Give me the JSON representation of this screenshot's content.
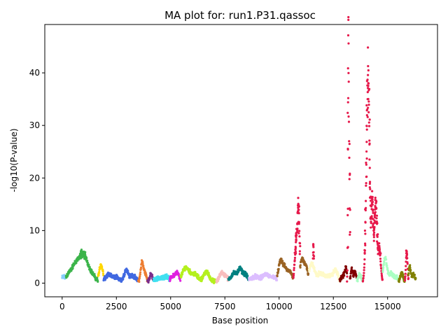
{
  "chart_data": {
    "type": "scatter",
    "title": "MA plot for: run1.P31.qassoc",
    "xlabel": "Base position",
    "ylabel": "-log10(P-value)",
    "xlim": [
      -800,
      17300
    ],
    "ylim": [
      -2.6,
      49.2
    ],
    "xticks": [
      0,
      2500,
      5000,
      7500,
      10000,
      12500,
      15000
    ],
    "yticks": [
      0,
      10,
      20,
      30,
      40
    ],
    "grid": false,
    "legend": "none",
    "segments": [
      {
        "color": "#87CEFA",
        "x_start": 0,
        "x_end": 170,
        "peaks": [
          [
            80,
            0.8,
            150
          ]
        ]
      },
      {
        "color": "#3CB44B",
        "x_start": 180,
        "x_end": 1650,
        "peaks": [
          [
            300,
            1.2,
            120
          ],
          [
            550,
            1.5,
            130
          ],
          [
            820,
            3.4,
            220
          ],
          [
            1050,
            2.8,
            180
          ],
          [
            1380,
            1.0,
            150
          ]
        ]
      },
      {
        "color": "#FFD700",
        "x_start": 1660,
        "x_end": 1900,
        "peaks": [
          [
            1750,
            2.6,
            60
          ],
          [
            1850,
            1.8,
            50
          ]
        ]
      },
      {
        "color": "#4169E1",
        "x_start": 1910,
        "x_end": 3500,
        "peaks": [
          [
            2150,
            1.2,
            140
          ],
          [
            2500,
            0.8,
            120
          ],
          [
            2950,
            2.2,
            90
          ],
          [
            3250,
            1.1,
            120
          ]
        ]
      },
      {
        "color": "#ED7D31",
        "x_start": 3510,
        "x_end": 3920,
        "peaks": [
          [
            3680,
            3.6,
            60
          ],
          [
            3820,
            1.5,
            60
          ]
        ]
      },
      {
        "color": "#7B2D8B",
        "x_start": 3930,
        "x_end": 4200,
        "peaks": [
          [
            4100,
            1.3,
            60
          ]
        ]
      },
      {
        "color": "#40E0F0",
        "x_start": 4210,
        "x_end": 4950,
        "peaks": [
          [
            4450,
            0.6,
            150
          ],
          [
            4800,
            0.9,
            120
          ]
        ]
      },
      {
        "color": "#E020E0",
        "x_start": 4960,
        "x_end": 5450,
        "peaks": [
          [
            5100,
            0.9,
            100
          ],
          [
            5300,
            1.5,
            90
          ]
        ]
      },
      {
        "color": "#B4F01E",
        "x_start": 5460,
        "x_end": 7100,
        "peaks": [
          [
            5700,
            2.6,
            160
          ],
          [
            6100,
            1.3,
            160
          ],
          [
            6650,
            1.8,
            120
          ]
        ]
      },
      {
        "color": "#F9BEBE",
        "x_start": 7110,
        "x_end": 7650,
        "peaks": [
          [
            7350,
            1.7,
            90
          ],
          [
            7550,
            1.0,
            70
          ]
        ]
      },
      {
        "color": "#008080",
        "x_start": 7660,
        "x_end": 8600,
        "peaks": [
          [
            7900,
            1.5,
            120
          ],
          [
            8200,
            2.3,
            110
          ],
          [
            8450,
            1.2,
            90
          ]
        ]
      },
      {
        "color": "#DCBEFF",
        "x_start": 8610,
        "x_end": 9900,
        "peaks": [
          [
            8900,
            0.9,
            180
          ],
          [
            9400,
            1.3,
            150
          ],
          [
            9750,
            0.8,
            100
          ]
        ]
      },
      {
        "color": "#9A6324",
        "x_start": 9910,
        "x_end": 10650,
        "peaks": [
          [
            10050,
            3.3,
            90
          ],
          [
            10250,
            2.6,
            110
          ],
          [
            10500,
            1.8,
            90
          ]
        ]
      },
      {
        "color": "#E6194B",
        "x_start": 10660,
        "x_end": 10960,
        "peaks": [
          [
            10800,
            7.5,
            70
          ],
          [
            10900,
            11.5,
            45
          ]
        ]
      },
      {
        "color": "#9A6324",
        "x_start": 10970,
        "x_end": 11350,
        "peaks": [
          [
            11050,
            4.2,
            90
          ],
          [
            11250,
            2.6,
            80
          ]
        ]
      },
      {
        "color": "#E6194B",
        "x_start": 11560,
        "x_end": 11600,
        "peaks": [
          [
            11580,
            7.0,
            20
          ]
        ]
      },
      {
        "color": "#FFFAC8",
        "x_start": 11380,
        "x_end": 12780,
        "peaks": [
          [
            11500,
            3.2,
            120
          ],
          [
            11900,
            1.5,
            160
          ],
          [
            12300,
            1.0,
            150
          ],
          [
            12600,
            2.0,
            100
          ]
        ]
      },
      {
        "color": "#800000",
        "x_start": 12790,
        "x_end": 13130,
        "peaks": [
          [
            12950,
            1.0,
            90
          ],
          [
            13080,
            2.2,
            50
          ]
        ]
      },
      {
        "color": "#E6194B",
        "x_start": 13130,
        "x_end": 13260,
        "peaks": [
          [
            13190,
            44.0,
            18
          ],
          [
            13230,
            22.0,
            20
          ]
        ]
      },
      {
        "color": "#800000",
        "x_start": 13270,
        "x_end": 13580,
        "peaks": [
          [
            13350,
            2.2,
            50
          ],
          [
            13500,
            1.8,
            50
          ]
        ]
      },
      {
        "color": "#AAFFC3",
        "x_start": 13590,
        "x_end": 13850,
        "peaks": [
          [
            13720,
            1.2,
            70
          ]
        ]
      },
      {
        "color": "#E6194B",
        "x_start": 13860,
        "x_end": 14770,
        "peaks": [
          [
            14100,
            39.0,
            75
          ],
          [
            14300,
            14.0,
            40
          ],
          [
            14450,
            15.0,
            60
          ],
          [
            14620,
            6.0,
            60
          ]
        ]
      },
      {
        "color": "#AAFFC3",
        "x_start": 14780,
        "x_end": 15500,
        "peaks": [
          [
            14880,
            4.3,
            80
          ],
          [
            15150,
            1.5,
            120
          ],
          [
            15400,
            0.6,
            80
          ]
        ]
      },
      {
        "color": "#808000",
        "x_start": 15510,
        "x_end": 15800,
        "peaks": [
          [
            15650,
            1.6,
            60
          ]
        ]
      },
      {
        "color": "#E6194B",
        "x_start": 15800,
        "x_end": 15960,
        "peaks": [
          [
            15880,
            5.8,
            35
          ]
        ]
      },
      {
        "color": "#808000",
        "x_start": 15960,
        "x_end": 16300,
        "peaks": [
          [
            16020,
            2.8,
            50
          ],
          [
            16200,
            1.4,
            60
          ]
        ]
      }
    ]
  }
}
